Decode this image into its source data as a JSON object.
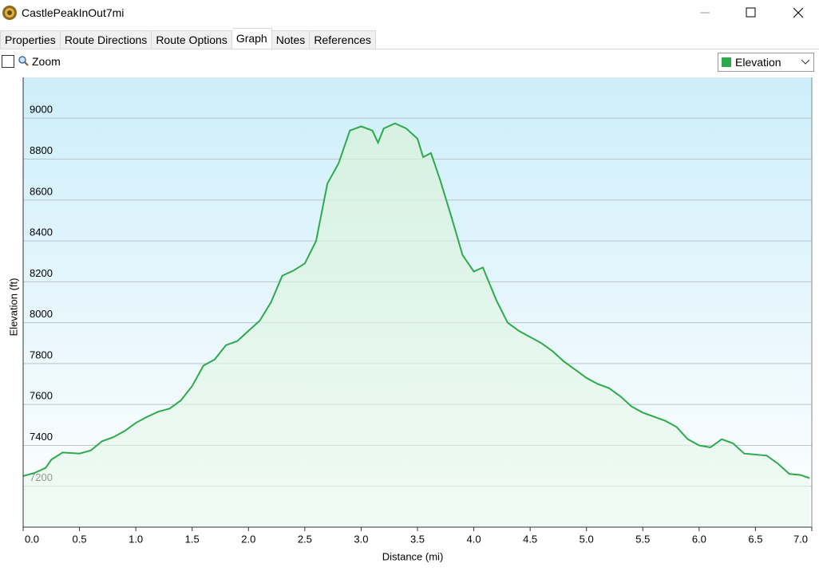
{
  "window": {
    "title": "CastlePeakInOut7mi"
  },
  "tabs": [
    {
      "label": "Properties"
    },
    {
      "label": "Route Directions"
    },
    {
      "label": "Route Options"
    },
    {
      "label": "Graph",
      "active": true
    },
    {
      "label": "Notes"
    },
    {
      "label": "References"
    }
  ],
  "toolbar": {
    "zoom_label": "Zoom"
  },
  "chart_data": {
    "type": "line",
    "xlabel": "Distance (mi)",
    "ylabel": "Elevation (ft)",
    "x": [
      0,
      0.1,
      0.2,
      0.25,
      0.35,
      0.5,
      0.6,
      0.7,
      0.8,
      0.9,
      1.0,
      1.1,
      1.2,
      1.3,
      1.4,
      1.5,
      1.6,
      1.7,
      1.8,
      1.9,
      2.0,
      2.1,
      2.2,
      2.3,
      2.4,
      2.5,
      2.6,
      2.7,
      2.8,
      2.9,
      3.0,
      3.1,
      3.15,
      3.2,
      3.3,
      3.4,
      3.5,
      3.55,
      3.62,
      3.7,
      3.8,
      3.9,
      4.0,
      4.08,
      4.2,
      4.3,
      4.4,
      4.5,
      4.6,
      4.7,
      4.8,
      4.9,
      5.0,
      5.1,
      5.2,
      5.3,
      5.4,
      5.5,
      5.6,
      5.7,
      5.8,
      5.9,
      6.0,
      6.1,
      6.2,
      6.3,
      6.4,
      6.5,
      6.6,
      6.7,
      6.8,
      6.9,
      6.98
    ],
    "series": [
      {
        "name": "Elevation",
        "color": "#2eaa4c",
        "values": [
          7250,
          7265,
          7290,
          7330,
          7365,
          7360,
          7375,
          7420,
          7440,
          7470,
          7510,
          7540,
          7565,
          7580,
          7620,
          7690,
          7790,
          7820,
          7890,
          7910,
          7960,
          8010,
          8100,
          8230,
          8255,
          8290,
          8400,
          8680,
          8780,
          8940,
          8960,
          8940,
          8880,
          8950,
          8975,
          8950,
          8900,
          8810,
          8830,
          8700,
          8520,
          8330,
          8250,
          8270,
          8110,
          8000,
          7960,
          7930,
          7900,
          7860,
          7810,
          7770,
          7730,
          7700,
          7680,
          7640,
          7590,
          7560,
          7540,
          7520,
          7490,
          7430,
          7400,
          7390,
          7430,
          7410,
          7360,
          7355,
          7350,
          7310,
          7260,
          7255,
          7240
        ]
      }
    ],
    "xlim": [
      0,
      7
    ],
    "ylim": [
      7000,
      9200
    ],
    "xticks": [
      {
        "value": 0,
        "label": "0.0"
      },
      0.5,
      {
        "value": 1,
        "label": "1.0"
      },
      1.5,
      {
        "value": 2,
        "label": "2.0"
      },
      2.5,
      {
        "value": 3,
        "label": "3.0"
      },
      3.5,
      {
        "value": 4,
        "label": "4.0"
      },
      4.5,
      {
        "value": 5,
        "label": "5.0"
      },
      5.5,
      {
        "value": 6,
        "label": "6.0"
      },
      6.5,
      {
        "value": 7,
        "label": "7.0"
      }
    ],
    "yticks": [
      7200,
      7400,
      7600,
      7800,
      8000,
      8200,
      8400,
      8600,
      8800,
      9000
    ],
    "grid": true
  }
}
